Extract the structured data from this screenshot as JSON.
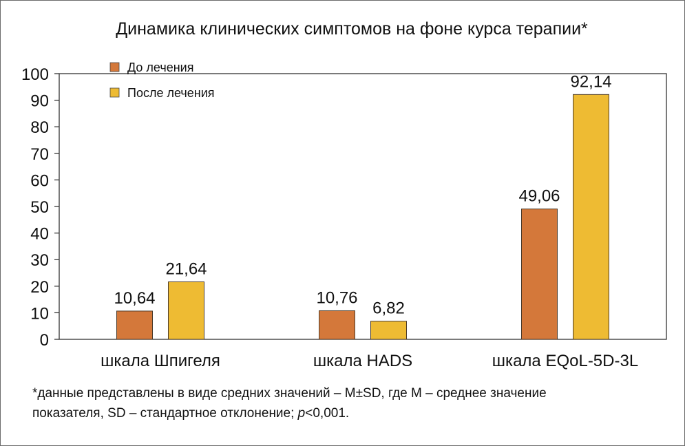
{
  "chart_data": {
    "type": "bar",
    "title": "Динамика клинических симптомов на фоне курса терапии*",
    "categories": [
      "шкала Шпигеля",
      "шкала HADS",
      "шкала EQoL-5D-3L"
    ],
    "series": [
      {
        "name": "До лечения",
        "values": [
          10.64,
          10.76,
          49.06
        ],
        "labels": [
          "10,64",
          "10,76",
          "49,06"
        ],
        "color": "#d4783a"
      },
      {
        "name": "После лечения",
        "values": [
          21.64,
          6.82,
          92.14
        ],
        "labels": [
          "21,64",
          "6,82",
          "92,14"
        ],
        "color": "#eebb33"
      }
    ],
    "yticks": [
      "0",
      "10",
      "20",
      "30",
      "40",
      "50",
      "60",
      "70",
      "80",
      "90",
      "100"
    ],
    "ylim": [
      0,
      100
    ],
    "grid": false,
    "legend": "top-left"
  },
  "footnote": {
    "line1": "*данные представлены в виде средних значений – M±SD, где M – среднее значение",
    "line2_prefix": "показателя, SD – стандартное отклонение; ",
    "line2_p": "p",
    "line2_suffix": "<0,001."
  }
}
